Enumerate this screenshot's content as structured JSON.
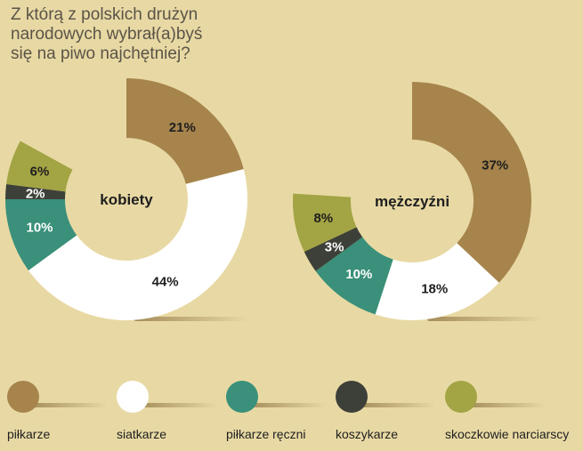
{
  "title_lines": [
    "Z którą z polskich drużyn",
    "narodowych wybrał(a)byś",
    "się na piwo najchętniej?"
  ],
  "colors": {
    "pilkarze": "#a6844c",
    "siatkarze": "#ffffff",
    "pilkarze_reczni": "#3a907a",
    "koszykarze": "#3d4038",
    "skoczkowie": "#a3a444"
  },
  "legend": [
    {
      "key": "pilkarze",
      "label": "piłkarze"
    },
    {
      "key": "siatkarze",
      "label": "siatkarze"
    },
    {
      "key": "pilkarze_reczni",
      "label": "piłkarze ręczni"
    },
    {
      "key": "koszykarze",
      "label": "koszykarze"
    },
    {
      "key": "skoczkowie",
      "label": "skoczkowie narciarscy"
    }
  ],
  "chart_data": [
    {
      "type": "pie",
      "center_label": "kobiety",
      "categories": [
        "piłkarze",
        "siatkarze",
        "piłkarze ręczni",
        "koszykarze",
        "skoczkowie narciarscy"
      ],
      "keys": [
        "pilkarze",
        "siatkarze",
        "pilkarze_reczni",
        "koszykarze",
        "skoczkowie"
      ],
      "values": [
        21,
        44,
        10,
        2,
        6
      ],
      "labels": [
        "21%",
        "44%",
        "10%",
        "2%",
        "6%"
      ]
    },
    {
      "type": "pie",
      "center_label": "mężczyźni",
      "categories": [
        "piłkarze",
        "siatkarze",
        "piłkarze ręczni",
        "koszykarze",
        "skoczkowie narciarscy"
      ],
      "keys": [
        "pilkarze",
        "siatkarze",
        "pilkarze_reczni",
        "koszykarze",
        "skoczkowie"
      ],
      "values": [
        37,
        18,
        10,
        3,
        8
      ],
      "labels": [
        "37%",
        "18%",
        "10%",
        "3%",
        "8%"
      ]
    }
  ]
}
